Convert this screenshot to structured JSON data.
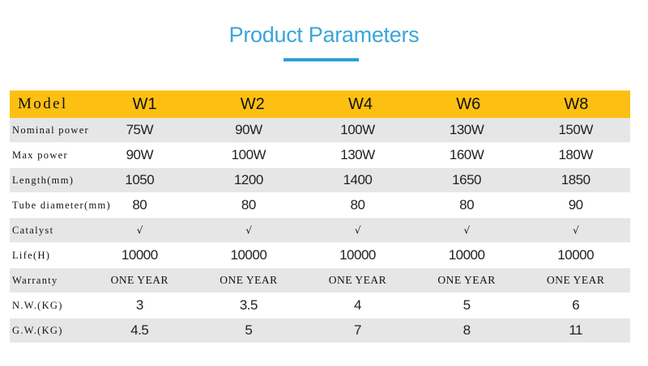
{
  "title": "Product Parameters",
  "table": {
    "header_label": "Model",
    "models": [
      "W1",
      "W2",
      "W4",
      "W6",
      "W8"
    ],
    "rows": [
      {
        "label": "Nominal power",
        "values": [
          "75W",
          "90W",
          "100W",
          "130W",
          "150W"
        ],
        "shaded": true,
        "style": "sans"
      },
      {
        "label": "Max power",
        "values": [
          "90W",
          "100W",
          "130W",
          "160W",
          "180W"
        ],
        "shaded": false,
        "style": "sans"
      },
      {
        "label": "Length(mm)",
        "values": [
          "1050",
          "1200",
          "1400",
          "1650",
          "1850"
        ],
        "shaded": true,
        "style": "sans"
      },
      {
        "label": "Tube diameter(mm)",
        "values": [
          "80",
          "80",
          "80",
          "80",
          "90"
        ],
        "shaded": false,
        "style": "sans"
      },
      {
        "label": "Catalyst",
        "values": [
          "√",
          "√",
          "√",
          "√",
          "√"
        ],
        "shaded": true,
        "style": "check"
      },
      {
        "label": "Life(H)",
        "values": [
          "10000",
          "10000",
          "10000",
          "10000",
          "10000"
        ],
        "shaded": false,
        "style": "sans"
      },
      {
        "label": "Warranty",
        "values": [
          "ONE YEAR",
          "ONE YEAR",
          "ONE YEAR",
          "ONE YEAR",
          "ONE YEAR"
        ],
        "shaded": true,
        "style": "serif"
      },
      {
        "label": "N.W.(KG)",
        "values": [
          "3",
          "3.5",
          "4",
          "5",
          "6"
        ],
        "shaded": false,
        "style": "sans"
      },
      {
        "label": "G.W.(KG)",
        "values": [
          "4.5",
          "5",
          "7",
          "8",
          "11"
        ],
        "shaded": true,
        "style": "sans"
      }
    ]
  },
  "colors": {
    "title": "#3aa6d8",
    "underline": "#2b9fd6",
    "header_bg": "#fdc012",
    "shaded_row_bg": "#e6e6e6"
  }
}
